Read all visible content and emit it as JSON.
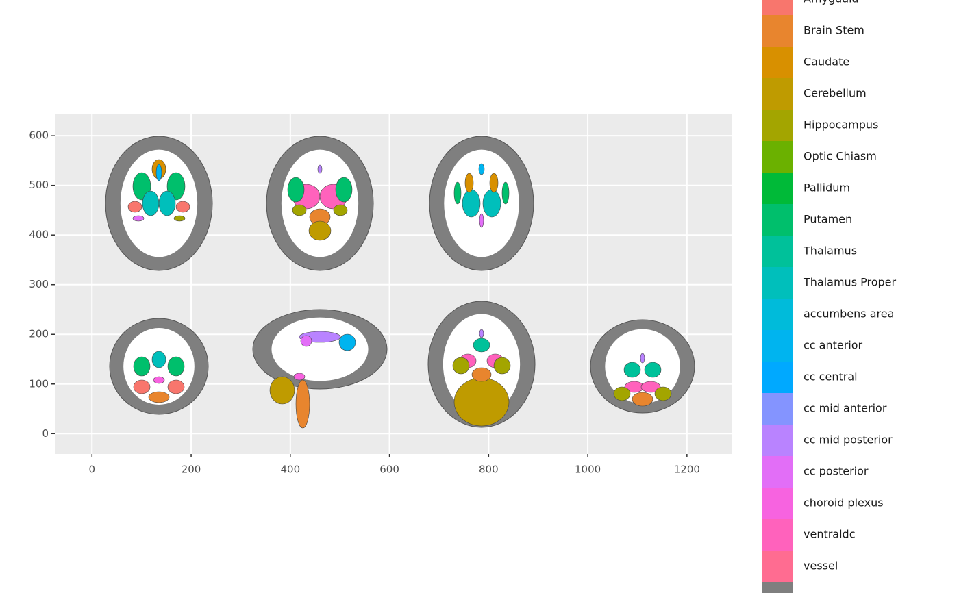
{
  "chart_data": {
    "type": "brain-atlas",
    "xlim": [
      -75,
      1290
    ],
    "ylim": [
      -41,
      643
    ],
    "xticks": [
      0,
      200,
      400,
      600,
      800,
      1000,
      1200
    ],
    "yticks": [
      0,
      100,
      200,
      300,
      400,
      500,
      600
    ],
    "grid": true,
    "legend": [
      {
        "name": "Amygdala",
        "color": "#F8766D"
      },
      {
        "name": "Brain Stem",
        "color": "#E8852E"
      },
      {
        "name": "Caudate",
        "color": "#D89000"
      },
      {
        "name": "Cerebellum",
        "color": "#BF9B00"
      },
      {
        "name": "Hippocampus",
        "color": "#A3A500"
      },
      {
        "name": "Optic Chiasm",
        "color": "#6BB100"
      },
      {
        "name": "Pallidum",
        "color": "#00BA38"
      },
      {
        "name": "Putamen",
        "color": "#00BF6C"
      },
      {
        "name": "Thalamus",
        "color": "#00C19A"
      },
      {
        "name": "Thalamus Proper",
        "color": "#00BFBB"
      },
      {
        "name": "accumbens area",
        "color": "#00BBDA"
      },
      {
        "name": "cc anterior",
        "color": "#00B4EF"
      },
      {
        "name": "cc central",
        "color": "#00A9FF"
      },
      {
        "name": "cc mid anterior",
        "color": "#8494FF"
      },
      {
        "name": "cc mid posterior",
        "color": "#B983FF"
      },
      {
        "name": "cc posterior",
        "color": "#E26EF7"
      },
      {
        "name": "choroid plexus",
        "color": "#F763E0"
      },
      {
        "name": "ventraldc",
        "color": "#FF62BC"
      },
      {
        "name": "vessel",
        "color": "#FF6C91"
      },
      {
        "name": null,
        "color": "#7F7F7F"
      }
    ]
  }
}
